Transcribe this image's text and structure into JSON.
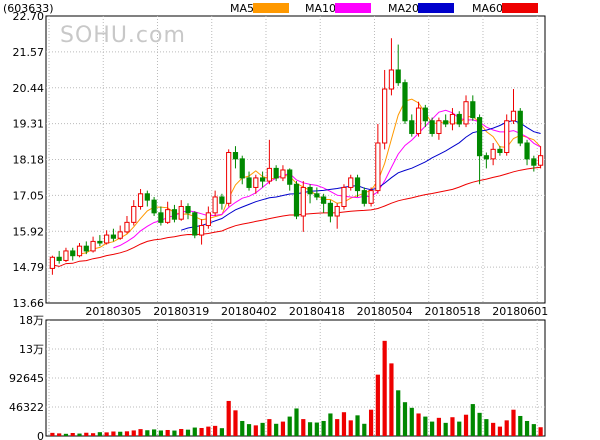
{
  "chart_data": {
    "type": "candlestick",
    "code": "(603633)",
    "watermark": "SOHU.com",
    "price_axis": {
      "ticks": [
        22.7,
        21.57,
        20.44,
        19.31,
        18.18,
        17.05,
        15.92,
        14.79,
        13.66
      ],
      "range": [
        13.66,
        22.7
      ]
    },
    "volume_axis": {
      "ticks": [
        "18万",
        "13万",
        "92645",
        "46322",
        "0"
      ],
      "range": [
        0,
        185290
      ]
    },
    "date_labels": [
      {
        "index": 9,
        "label": "20180305"
      },
      {
        "index": 19,
        "label": "20180319"
      },
      {
        "index": 29,
        "label": "20180402"
      },
      {
        "index": 39,
        "label": "20180418"
      },
      {
        "index": 49,
        "label": "20180504"
      },
      {
        "index": 59,
        "label": "20180518"
      },
      {
        "index": 69,
        "label": "20180601"
      }
    ],
    "legend": [
      {
        "name": "MA5",
        "color": "#ff9900"
      },
      {
        "name": "MA10",
        "color": "#ff00ff"
      },
      {
        "name": "MA20",
        "color": "#0000cc"
      },
      {
        "name": "MA60",
        "color": "#ee0000"
      }
    ],
    "colors": {
      "up": "#ee0000",
      "down": "#008800",
      "grid": "#bbbbbb",
      "frame": "#000000"
    },
    "candles": [
      [
        14.75,
        15.1,
        15.15,
        14.55
      ],
      [
        15.1,
        15.0,
        15.3,
        14.9
      ],
      [
        15.0,
        15.3,
        15.4,
        14.95
      ],
      [
        15.3,
        15.15,
        15.4,
        15.0
      ],
      [
        15.15,
        15.45,
        15.55,
        15.1
      ],
      [
        15.45,
        15.3,
        15.6,
        15.2
      ],
      [
        15.3,
        15.6,
        15.75,
        15.25
      ],
      [
        15.6,
        15.55,
        15.8,
        15.45
      ],
      [
        15.55,
        15.8,
        15.95,
        15.5
      ],
      [
        15.8,
        15.7,
        16.0,
        15.6
      ],
      [
        15.7,
        15.9,
        16.1,
        15.65
      ],
      [
        15.9,
        16.2,
        16.4,
        15.85
      ],
      [
        16.2,
        16.7,
        16.9,
        16.1
      ],
      [
        16.7,
        17.1,
        17.25,
        16.6
      ],
      [
        17.1,
        16.9,
        17.2,
        16.7
      ],
      [
        16.9,
        16.5,
        17.0,
        16.4
      ],
      [
        16.5,
        16.2,
        16.7,
        16.1
      ],
      [
        16.2,
        16.6,
        16.85,
        16.15
      ],
      [
        16.6,
        16.3,
        16.75,
        16.2
      ],
      [
        16.3,
        16.7,
        16.9,
        16.25
      ],
      [
        16.7,
        16.5,
        16.8,
        16.3
      ],
      [
        16.5,
        15.8,
        16.55,
        15.7
      ],
      [
        15.8,
        16.1,
        16.3,
        15.5
      ],
      [
        16.1,
        16.5,
        16.7,
        16.0
      ],
      [
        16.5,
        17.0,
        17.2,
        16.4
      ],
      [
        17.0,
        16.8,
        17.1,
        16.6
      ],
      [
        16.8,
        18.4,
        18.5,
        16.7
      ],
      [
        18.4,
        18.2,
        18.6,
        17.9
      ],
      [
        18.2,
        17.6,
        18.3,
        17.4
      ],
      [
        17.6,
        17.3,
        17.8,
        17.2
      ],
      [
        17.3,
        17.6,
        17.7,
        17.1
      ],
      [
        17.6,
        17.5,
        17.8,
        17.3
      ],
      [
        17.5,
        17.9,
        18.8,
        17.4
      ],
      [
        17.9,
        17.6,
        18.0,
        17.5
      ],
      [
        17.6,
        17.85,
        18.0,
        17.5
      ],
      [
        17.85,
        17.4,
        17.9,
        17.2
      ],
      [
        17.4,
        16.4,
        17.5,
        16.3
      ],
      [
        16.4,
        17.3,
        17.5,
        15.9
      ],
      [
        17.3,
        17.1,
        17.4,
        16.8
      ],
      [
        17.1,
        17.0,
        17.3,
        16.9
      ],
      [
        17.0,
        16.8,
        17.1,
        16.5
      ],
      [
        16.8,
        16.4,
        16.9,
        16.2
      ],
      [
        16.4,
        16.7,
        16.8,
        16.0
      ],
      [
        16.7,
        17.3,
        17.4,
        16.6
      ],
      [
        17.3,
        17.6,
        17.7,
        17.2
      ],
      [
        17.6,
        17.2,
        17.7,
        17.0
      ],
      [
        17.2,
        16.8,
        17.3,
        16.7
      ],
      [
        16.8,
        17.2,
        17.3,
        16.7
      ],
      [
        17.2,
        18.7,
        19.3,
        17.1
      ],
      [
        18.7,
        20.4,
        21.0,
        18.5
      ],
      [
        20.4,
        21.0,
        22.0,
        20.2
      ],
      [
        21.0,
        20.6,
        21.8,
        20.5
      ],
      [
        20.6,
        19.4,
        20.7,
        19.3
      ],
      [
        19.4,
        19.0,
        19.6,
        18.9
      ],
      [
        19.0,
        19.8,
        20.0,
        18.9
      ],
      [
        19.8,
        19.4,
        19.9,
        19.2
      ],
      [
        19.4,
        19.0,
        19.5,
        18.9
      ],
      [
        19.0,
        19.4,
        19.5,
        18.8
      ],
      [
        19.4,
        19.3,
        19.6,
        19.2
      ],
      [
        19.3,
        19.6,
        19.8,
        19.1
      ],
      [
        19.6,
        19.3,
        19.7,
        19.2
      ],
      [
        19.3,
        20.0,
        20.2,
        19.2
      ],
      [
        20.0,
        19.5,
        20.2,
        19.4
      ],
      [
        19.5,
        18.3,
        19.6,
        17.4
      ],
      [
        18.3,
        18.2,
        18.4,
        17.9
      ],
      [
        18.2,
        18.5,
        18.7,
        18.0
      ],
      [
        18.5,
        18.4,
        18.6,
        18.3
      ],
      [
        18.4,
        19.4,
        19.6,
        18.3
      ],
      [
        19.4,
        19.7,
        20.4,
        19.3
      ],
      [
        19.7,
        18.7,
        19.8,
        18.6
      ],
      [
        18.7,
        18.2,
        18.8,
        18.0
      ],
      [
        18.2,
        18.0,
        18.3,
        17.8
      ],
      [
        18.0,
        18.3,
        18.6,
        17.9
      ]
    ],
    "volumes": [
      [
        5000,
        1
      ],
      [
        4200,
        1
      ],
      [
        3500,
        0
      ],
      [
        4800,
        1
      ],
      [
        3900,
        0
      ],
      [
        5200,
        1
      ],
      [
        4500,
        1
      ],
      [
        6100,
        0
      ],
      [
        5800,
        1
      ],
      [
        7200,
        1
      ],
      [
        6800,
        0
      ],
      [
        7500,
        1
      ],
      [
        8900,
        1
      ],
      [
        11000,
        1
      ],
      [
        9200,
        0
      ],
      [
        10500,
        0
      ],
      [
        8800,
        0
      ],
      [
        9600,
        1
      ],
      [
        8700,
        0
      ],
      [
        11200,
        1
      ],
      [
        10100,
        0
      ],
      [
        13500,
        0
      ],
      [
        12800,
        1
      ],
      [
        15000,
        1
      ],
      [
        16200,
        1
      ],
      [
        12500,
        0
      ],
      [
        56000,
        1
      ],
      [
        41000,
        1
      ],
      [
        24000,
        0
      ],
      [
        19000,
        0
      ],
      [
        17000,
        1
      ],
      [
        21000,
        0
      ],
      [
        27000,
        1
      ],
      [
        19500,
        0
      ],
      [
        23000,
        1
      ],
      [
        31000,
        0
      ],
      [
        44000,
        0
      ],
      [
        27000,
        1
      ],
      [
        22000,
        0
      ],
      [
        21500,
        0
      ],
      [
        24000,
        0
      ],
      [
        36000,
        0
      ],
      [
        27000,
        1
      ],
      [
        38000,
        1
      ],
      [
        25000,
        1
      ],
      [
        33000,
        0
      ],
      [
        19500,
        0
      ],
      [
        42000,
        1
      ],
      [
        98000,
        1
      ],
      [
        152000,
        1
      ],
      [
        116000,
        1
      ],
      [
        73000,
        0
      ],
      [
        54000,
        0
      ],
      [
        45000,
        0
      ],
      [
        36000,
        1
      ],
      [
        31000,
        0
      ],
      [
        23000,
        0
      ],
      [
        29000,
        1
      ],
      [
        21000,
        0
      ],
      [
        30000,
        1
      ],
      [
        23000,
        0
      ],
      [
        34000,
        1
      ],
      [
        51000,
        0
      ],
      [
        37000,
        0
      ],
      [
        27000,
        0
      ],
      [
        21000,
        1
      ],
      [
        15000,
        1
      ],
      [
        25000,
        1
      ],
      [
        42000,
        1
      ],
      [
        32000,
        0
      ],
      [
        24000,
        0
      ],
      [
        19000,
        0
      ],
      [
        14000,
        1
      ]
    ]
  }
}
